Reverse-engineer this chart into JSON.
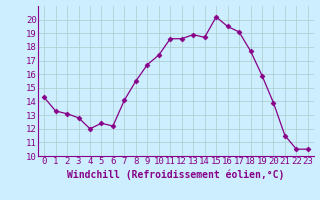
{
  "x": [
    0,
    1,
    2,
    3,
    4,
    5,
    6,
    7,
    8,
    9,
    10,
    11,
    12,
    13,
    14,
    15,
    16,
    17,
    18,
    19,
    20,
    21,
    22,
    23
  ],
  "y": [
    14.3,
    13.3,
    13.1,
    12.8,
    12.0,
    12.4,
    12.2,
    14.1,
    15.5,
    16.7,
    17.4,
    18.6,
    18.6,
    18.9,
    18.7,
    20.2,
    19.5,
    19.1,
    17.7,
    15.9,
    13.9,
    11.5,
    10.5,
    10.5
  ],
  "line_color": "#880088",
  "marker": "D",
  "marker_size": 2.5,
  "background_color": "#cceeff",
  "grid_color": "#aacccc",
  "xlabel": "Windchill (Refroidissement éolien,°C)",
  "xlabel_fontsize": 7,
  "tick_fontsize": 6.5,
  "ylim": [
    10,
    21
  ],
  "xlim": [
    -0.5,
    23.5
  ],
  "yticks": [
    10,
    11,
    12,
    13,
    14,
    15,
    16,
    17,
    18,
    19,
    20
  ],
  "xticks": [
    0,
    1,
    2,
    3,
    4,
    5,
    6,
    7,
    8,
    9,
    10,
    11,
    12,
    13,
    14,
    15,
    16,
    17,
    18,
    19,
    20,
    21,
    22,
    23
  ]
}
